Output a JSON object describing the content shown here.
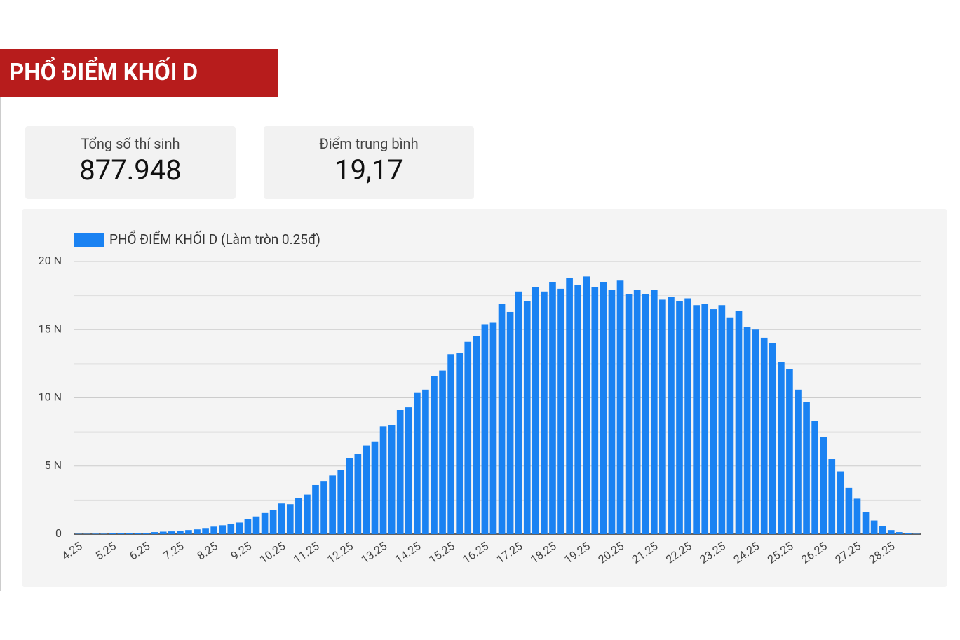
{
  "header": {
    "title": "PHỔ ĐIỂM KHỐI D"
  },
  "stats": [
    {
      "label": "Tổng số thí sinh",
      "value": "877.948"
    },
    {
      "label": "Điểm trung bình",
      "value": "19,17"
    }
  ],
  "chart_data": {
    "type": "bar",
    "categories": [
      "4.25",
      null,
      null,
      null,
      "5.25",
      null,
      null,
      null,
      "6.25",
      null,
      null,
      null,
      "7.25",
      null,
      null,
      null,
      "8.25",
      null,
      null,
      null,
      "9.25",
      null,
      null,
      null,
      "10.25",
      null,
      null,
      null,
      "11.25",
      null,
      null,
      null,
      "12.25",
      null,
      null,
      null,
      "13.25",
      null,
      null,
      null,
      "14.25",
      null,
      null,
      null,
      "15.25",
      null,
      null,
      null,
      "16.25",
      null,
      null,
      null,
      "17.25",
      null,
      null,
      null,
      "18.25",
      null,
      null,
      null,
      "19.25",
      null,
      null,
      null,
      "20.25",
      null,
      null,
      null,
      "21.25",
      null,
      null,
      null,
      "22.25",
      null,
      null,
      null,
      "23.25",
      null,
      null,
      null,
      "24.25",
      null,
      null,
      null,
      "25.25",
      null,
      null,
      null,
      "26.25",
      null,
      null,
      null,
      "27.25",
      null,
      null,
      null,
      "28.25",
      null,
      null,
      null
    ],
    "series": [
      {
        "name": "PHỔ ĐIỂM KHỐI D (Làm tròn 0.25đ)",
        "color": "#1a82f2",
        "values": [
          0.02,
          0.02,
          0.03,
          0.03,
          0.05,
          0.05,
          0.07,
          0.08,
          0.1,
          0.15,
          0.18,
          0.2,
          0.25,
          0.3,
          0.35,
          0.45,
          0.55,
          0.65,
          0.75,
          0.85,
          1.1,
          1.3,
          1.55,
          1.75,
          2.25,
          2.2,
          2.65,
          2.9,
          3.6,
          3.9,
          4.3,
          4.7,
          5.6,
          5.9,
          6.5,
          6.8,
          7.9,
          8.0,
          9.1,
          9.3,
          10.4,
          10.6,
          11.6,
          12.0,
          13.2,
          13.3,
          14.1,
          14.5,
          15.4,
          15.5,
          16.9,
          16.3,
          17.8,
          17.1,
          18.1,
          17.8,
          18.5,
          18.0,
          18.8,
          18.3,
          18.9,
          18.1,
          18.5,
          17.9,
          18.6,
          17.6,
          17.9,
          17.6,
          17.9,
          17.2,
          17.4,
          17.1,
          17.3,
          16.8,
          16.9,
          16.5,
          16.8,
          15.9,
          16.4,
          15.2,
          15.0,
          14.4,
          14.0,
          12.6,
          12.1,
          10.6,
          9.7,
          8.3,
          7.1,
          5.5,
          4.6,
          3.4,
          2.6,
          1.6,
          1.0,
          0.6,
          0.3,
          0.15,
          0.05,
          0.02
        ]
      }
    ],
    "ylim": [
      0,
      20
    ],
    "yticks": [
      0,
      {
        "value": 5,
        "label": "5 N"
      },
      {
        "value": 10,
        "label": "10 N"
      },
      {
        "value": 15,
        "label": "15 N"
      },
      {
        "value": 20,
        "label": "20 N"
      }
    ],
    "grid": true,
    "legend": "top-left"
  }
}
